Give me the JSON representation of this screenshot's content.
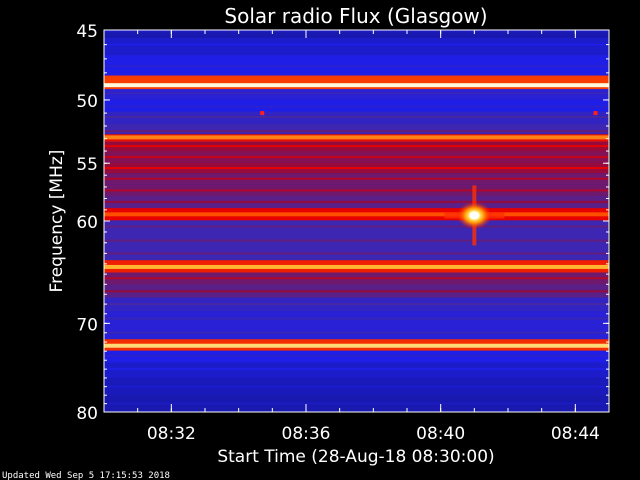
{
  "chart_data": {
    "type": "heatmap",
    "title": "Solar radio Flux (Glasgow)",
    "xlabel": "Start Time (28-Aug-18 08:30:00)",
    "ylabel": "Frequency [MHz]",
    "x_ticks": [
      "08:32",
      "08:36",
      "08:40",
      "08:44"
    ],
    "x_tick_minutes": [
      2,
      6,
      10,
      14
    ],
    "x_range_minutes": [
      0,
      15
    ],
    "y_ticks": [
      45,
      50,
      55,
      60,
      70,
      80
    ],
    "y_range_mhz": [
      45,
      80
    ],
    "y_scale": "log",
    "colormap": [
      "#000000",
      "#1a1aff",
      "#3a3aaa",
      "#ff0000",
      "#ffb000",
      "#ffffff"
    ],
    "bands": [
      {
        "freq": 45.1,
        "level": 0.1
      },
      {
        "freq": 46.0,
        "level": 0.15
      },
      {
        "freq": 47.5,
        "level": 0.2
      },
      {
        "freq": 48.9,
        "level": 1.0
      },
      {
        "freq": 49.5,
        "level": 0.25
      },
      {
        "freq": 50.5,
        "level": 0.2
      },
      {
        "freq": 51.3,
        "level": 0.3
      },
      {
        "freq": 52.4,
        "level": 0.35
      },
      {
        "freq": 52.9,
        "level": 0.85
      },
      {
        "freq": 53.6,
        "level": 0.6
      },
      {
        "freq": 54.5,
        "level": 0.55
      },
      {
        "freq": 55.4,
        "level": 0.6
      },
      {
        "freq": 56.3,
        "level": 0.5
      },
      {
        "freq": 57.3,
        "level": 0.5
      },
      {
        "freq": 58.3,
        "level": 0.45
      },
      {
        "freq": 59.4,
        "level": 0.8
      },
      {
        "freq": 60.5,
        "level": 0.35
      },
      {
        "freq": 61.8,
        "level": 0.35
      },
      {
        "freq": 63.0,
        "level": 0.35
      },
      {
        "freq": 64.3,
        "level": 0.9
      },
      {
        "freq": 65.4,
        "level": 0.5
      },
      {
        "freq": 66.7,
        "level": 0.45
      },
      {
        "freq": 68.0,
        "level": 0.3
      },
      {
        "freq": 69.5,
        "level": 0.25
      },
      {
        "freq": 71.0,
        "level": 0.25
      },
      {
        "freq": 72.4,
        "level": 0.95
      },
      {
        "freq": 73.5,
        "level": 0.2
      },
      {
        "freq": 75.0,
        "level": 0.15
      },
      {
        "freq": 77.0,
        "level": 0.12
      },
      {
        "freq": 79.0,
        "level": 0.1
      }
    ],
    "bursts": [
      {
        "time_min": 11.0,
        "freq": 59.5,
        "intensity": 1.0
      },
      {
        "time_min": 4.7,
        "freq": 51.0,
        "intensity": 0.55
      },
      {
        "time_min": 14.6,
        "freq": 51.0,
        "intensity": 0.5
      }
    ]
  },
  "footer": {
    "updated": "Updated Wed Sep  5 17:15:53 2018"
  }
}
